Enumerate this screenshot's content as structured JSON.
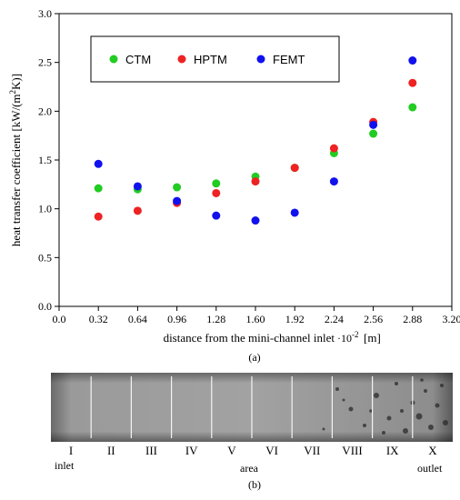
{
  "chart_data": {
    "type": "scatter",
    "xlabel": "distance from the mini-channel inlet",
    "xlabel_exponent": "·10",
    "xlabel_exponent_power": "-2",
    "xlabel_unit": "[m]",
    "ylabel": "heat transfer coefficient  [kW/(m",
    "ylabel_power": "2",
    "ylabel_tail": "K)]",
    "xlim": [
      0.0,
      3.2
    ],
    "ylim": [
      0.0,
      3.0
    ],
    "xticks": [
      "0.0",
      "0.32",
      "0.64",
      "0.96",
      "1.28",
      "1.60",
      "1.92",
      "2.24",
      "2.56",
      "2.88",
      "3.20"
    ],
    "yticks": [
      "0.0",
      "0.5",
      "1.0",
      "1.5",
      "2.0",
      "2.5",
      "3.0"
    ],
    "legend_position": "top-left",
    "caption": "(a)",
    "series": [
      {
        "name": "CTM",
        "color": "#22cc22",
        "x": [
          0.32,
          0.64,
          0.96,
          1.28,
          1.6,
          1.92,
          2.24,
          2.56,
          2.88
        ],
        "y": [
          1.21,
          1.2,
          1.22,
          1.26,
          1.33,
          1.42,
          1.57,
          1.77,
          2.04
        ]
      },
      {
        "name": "HPTM",
        "color": "#ee2222",
        "x": [
          0.32,
          0.64,
          0.96,
          1.28,
          1.6,
          1.92,
          2.24,
          2.56,
          2.88
        ],
        "y": [
          0.92,
          0.98,
          1.06,
          1.16,
          1.28,
          1.42,
          1.62,
          1.89,
          2.29
        ]
      },
      {
        "name": "FEMT",
        "color": "#1111ee",
        "x": [
          0.32,
          0.64,
          0.96,
          1.28,
          1.6,
          1.92,
          2.24,
          2.56,
          2.88
        ],
        "y": [
          1.46,
          1.23,
          1.08,
          0.93,
          0.88,
          0.96,
          1.28,
          1.86,
          2.52
        ]
      }
    ]
  },
  "photo": {
    "sections": [
      "I",
      "II",
      "III",
      "IV",
      "V",
      "VI",
      "VII",
      "VIII",
      "IX",
      "X"
    ],
    "inlet_label": "inlet",
    "area_label": "area",
    "outlet_label": "outlet",
    "caption": "(b)"
  }
}
